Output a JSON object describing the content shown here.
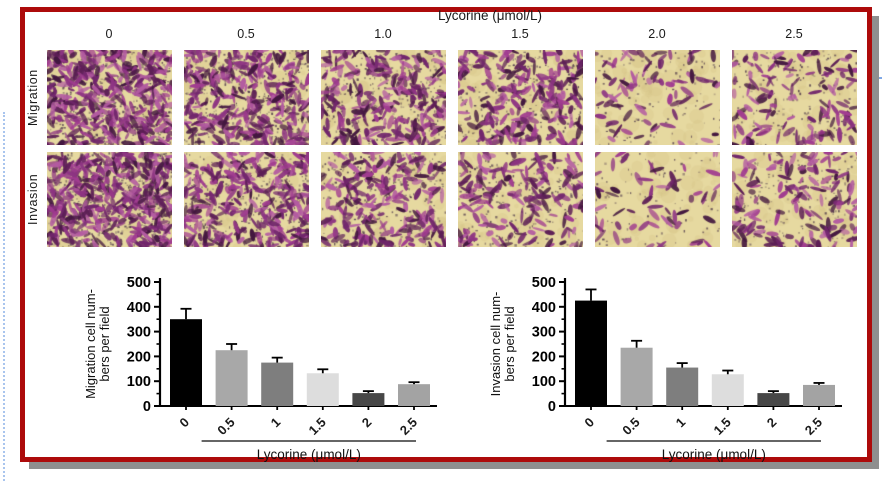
{
  "frame": {
    "border_color": "#ad0b0b",
    "shadow_color": "#8f8f8f",
    "guide_line_color": "#a9c5ee"
  },
  "panel": {
    "title": "Lycorine (μmol/L)",
    "column_labels": [
      "0",
      "0.5",
      "1.0",
      "1.5",
      "2.0",
      "2.5"
    ],
    "rows": [
      {
        "label": "Migration",
        "cell_counts": [
          380,
          300,
          230,
          215,
          80,
          130
        ]
      },
      {
        "label": "Invasion",
        "cell_counts": [
          420,
          280,
          215,
          165,
          60,
          140
        ]
      }
    ],
    "micrograph": {
      "background": "#e6d9a0",
      "mottle_color": "rgba(212,193,132,0.28)",
      "cell_colors": [
        "#a13c90",
        "#8e3583",
        "#71266c",
        "#b35ba1",
        "#5d1f56",
        "#43173f"
      ],
      "speckle_color": "#3a2340"
    }
  },
  "chart_data": [
    {
      "type": "bar",
      "title": "",
      "categories": [
        "0",
        "0.5",
        "1",
        "1.5",
        "2",
        "2.5"
      ],
      "values": [
        350,
        225,
        175,
        132,
        52,
        88
      ],
      "errors_plus": [
        42,
        25,
        20,
        16,
        8,
        8
      ],
      "bar_colors": [
        "#000000",
        "#a8a8a8",
        "#7e7e7e",
        "#dddddd",
        "#474747",
        "#a3a3a3"
      ],
      "ylabel_lines": [
        "Migration cell num-",
        "bers per field"
      ],
      "xlabel": "Lycorine (μmol/L)",
      "ylim": [
        0,
        500
      ],
      "yticks": [
        0,
        100,
        200,
        300,
        400,
        500
      ],
      "minor_ticks": [
        50,
        150,
        250,
        350,
        450
      ],
      "grid": false,
      "legend": "none"
    },
    {
      "type": "bar",
      "title": "",
      "categories": [
        "0",
        "0.5",
        "1",
        "1.5",
        "2",
        "2.5"
      ],
      "values": [
        425,
        235,
        155,
        128,
        52,
        85
      ],
      "errors_plus": [
        45,
        28,
        18,
        15,
        8,
        8
      ],
      "bar_colors": [
        "#000000",
        "#a8a8a8",
        "#7e7e7e",
        "#dddddd",
        "#474747",
        "#a3a3a3"
      ],
      "ylabel_lines": [
        "Invasion cell num-",
        "bers per field"
      ],
      "xlabel": "Lycorine (μmol/L)",
      "ylim": [
        0,
        500
      ],
      "yticks": [
        0,
        100,
        200,
        300,
        400,
        500
      ],
      "minor_ticks": [
        50,
        150,
        250,
        350,
        450
      ],
      "grid": false,
      "legend": "none"
    }
  ]
}
